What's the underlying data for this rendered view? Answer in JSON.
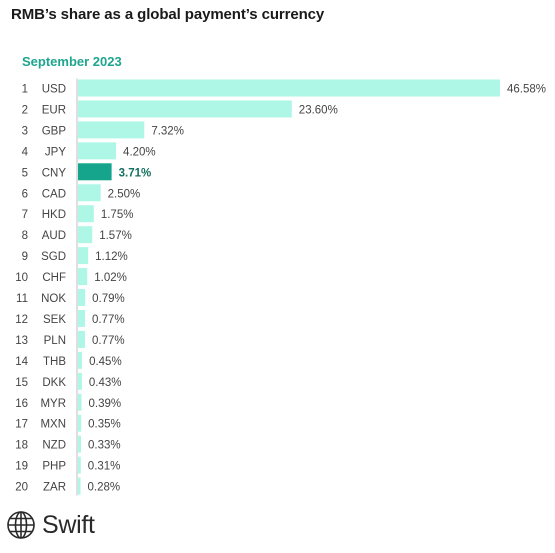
{
  "title": "RMB’s share as a global payment’s currency",
  "period": "September 2023",
  "logo_text": "Swift",
  "colors": {
    "bar": "#aef7e6",
    "highlight_bar": "#14a58c",
    "highlight_text": "#14705f",
    "period_text": "#1fa58e"
  },
  "chart_data": {
    "type": "bar",
    "orientation": "horizontal",
    "title": "RMB’s share as a global payment’s currency",
    "subtitle": "September 2023",
    "ranks": [
      "1",
      "2",
      "3",
      "4",
      "5",
      "6",
      "7",
      "8",
      "9",
      "10",
      "11",
      "12",
      "13",
      "14",
      "15",
      "16",
      "17",
      "18",
      "19",
      "20"
    ],
    "categories": [
      "USD",
      "EUR",
      "GBP",
      "JPY",
      "CNY",
      "CAD",
      "HKD",
      "AUD",
      "SGD",
      "CHF",
      "NOK",
      "SEK",
      "PLN",
      "THB",
      "DKK",
      "MYR",
      "MXN",
      "NZD",
      "PHP",
      "ZAR"
    ],
    "values": [
      46.58,
      23.6,
      7.32,
      4.2,
      3.71,
      2.5,
      1.75,
      1.57,
      1.12,
      1.02,
      0.79,
      0.77,
      0.77,
      0.45,
      0.43,
      0.39,
      0.35,
      0.33,
      0.31,
      0.28
    ],
    "value_labels": [
      "46.58%",
      "23.60%",
      "7.32%",
      "4.20%",
      "3.71%",
      "2.50%",
      "1.75%",
      "1.57%",
      "1.12%",
      "1.02%",
      "0.79%",
      "0.77%",
      "0.77%",
      "0.45%",
      "0.43%",
      "0.39%",
      "0.35%",
      "0.33%",
      "0.31%",
      "0.28%"
    ],
    "highlight": "CNY",
    "xlim": [
      0,
      46.58
    ],
    "grid": false
  }
}
